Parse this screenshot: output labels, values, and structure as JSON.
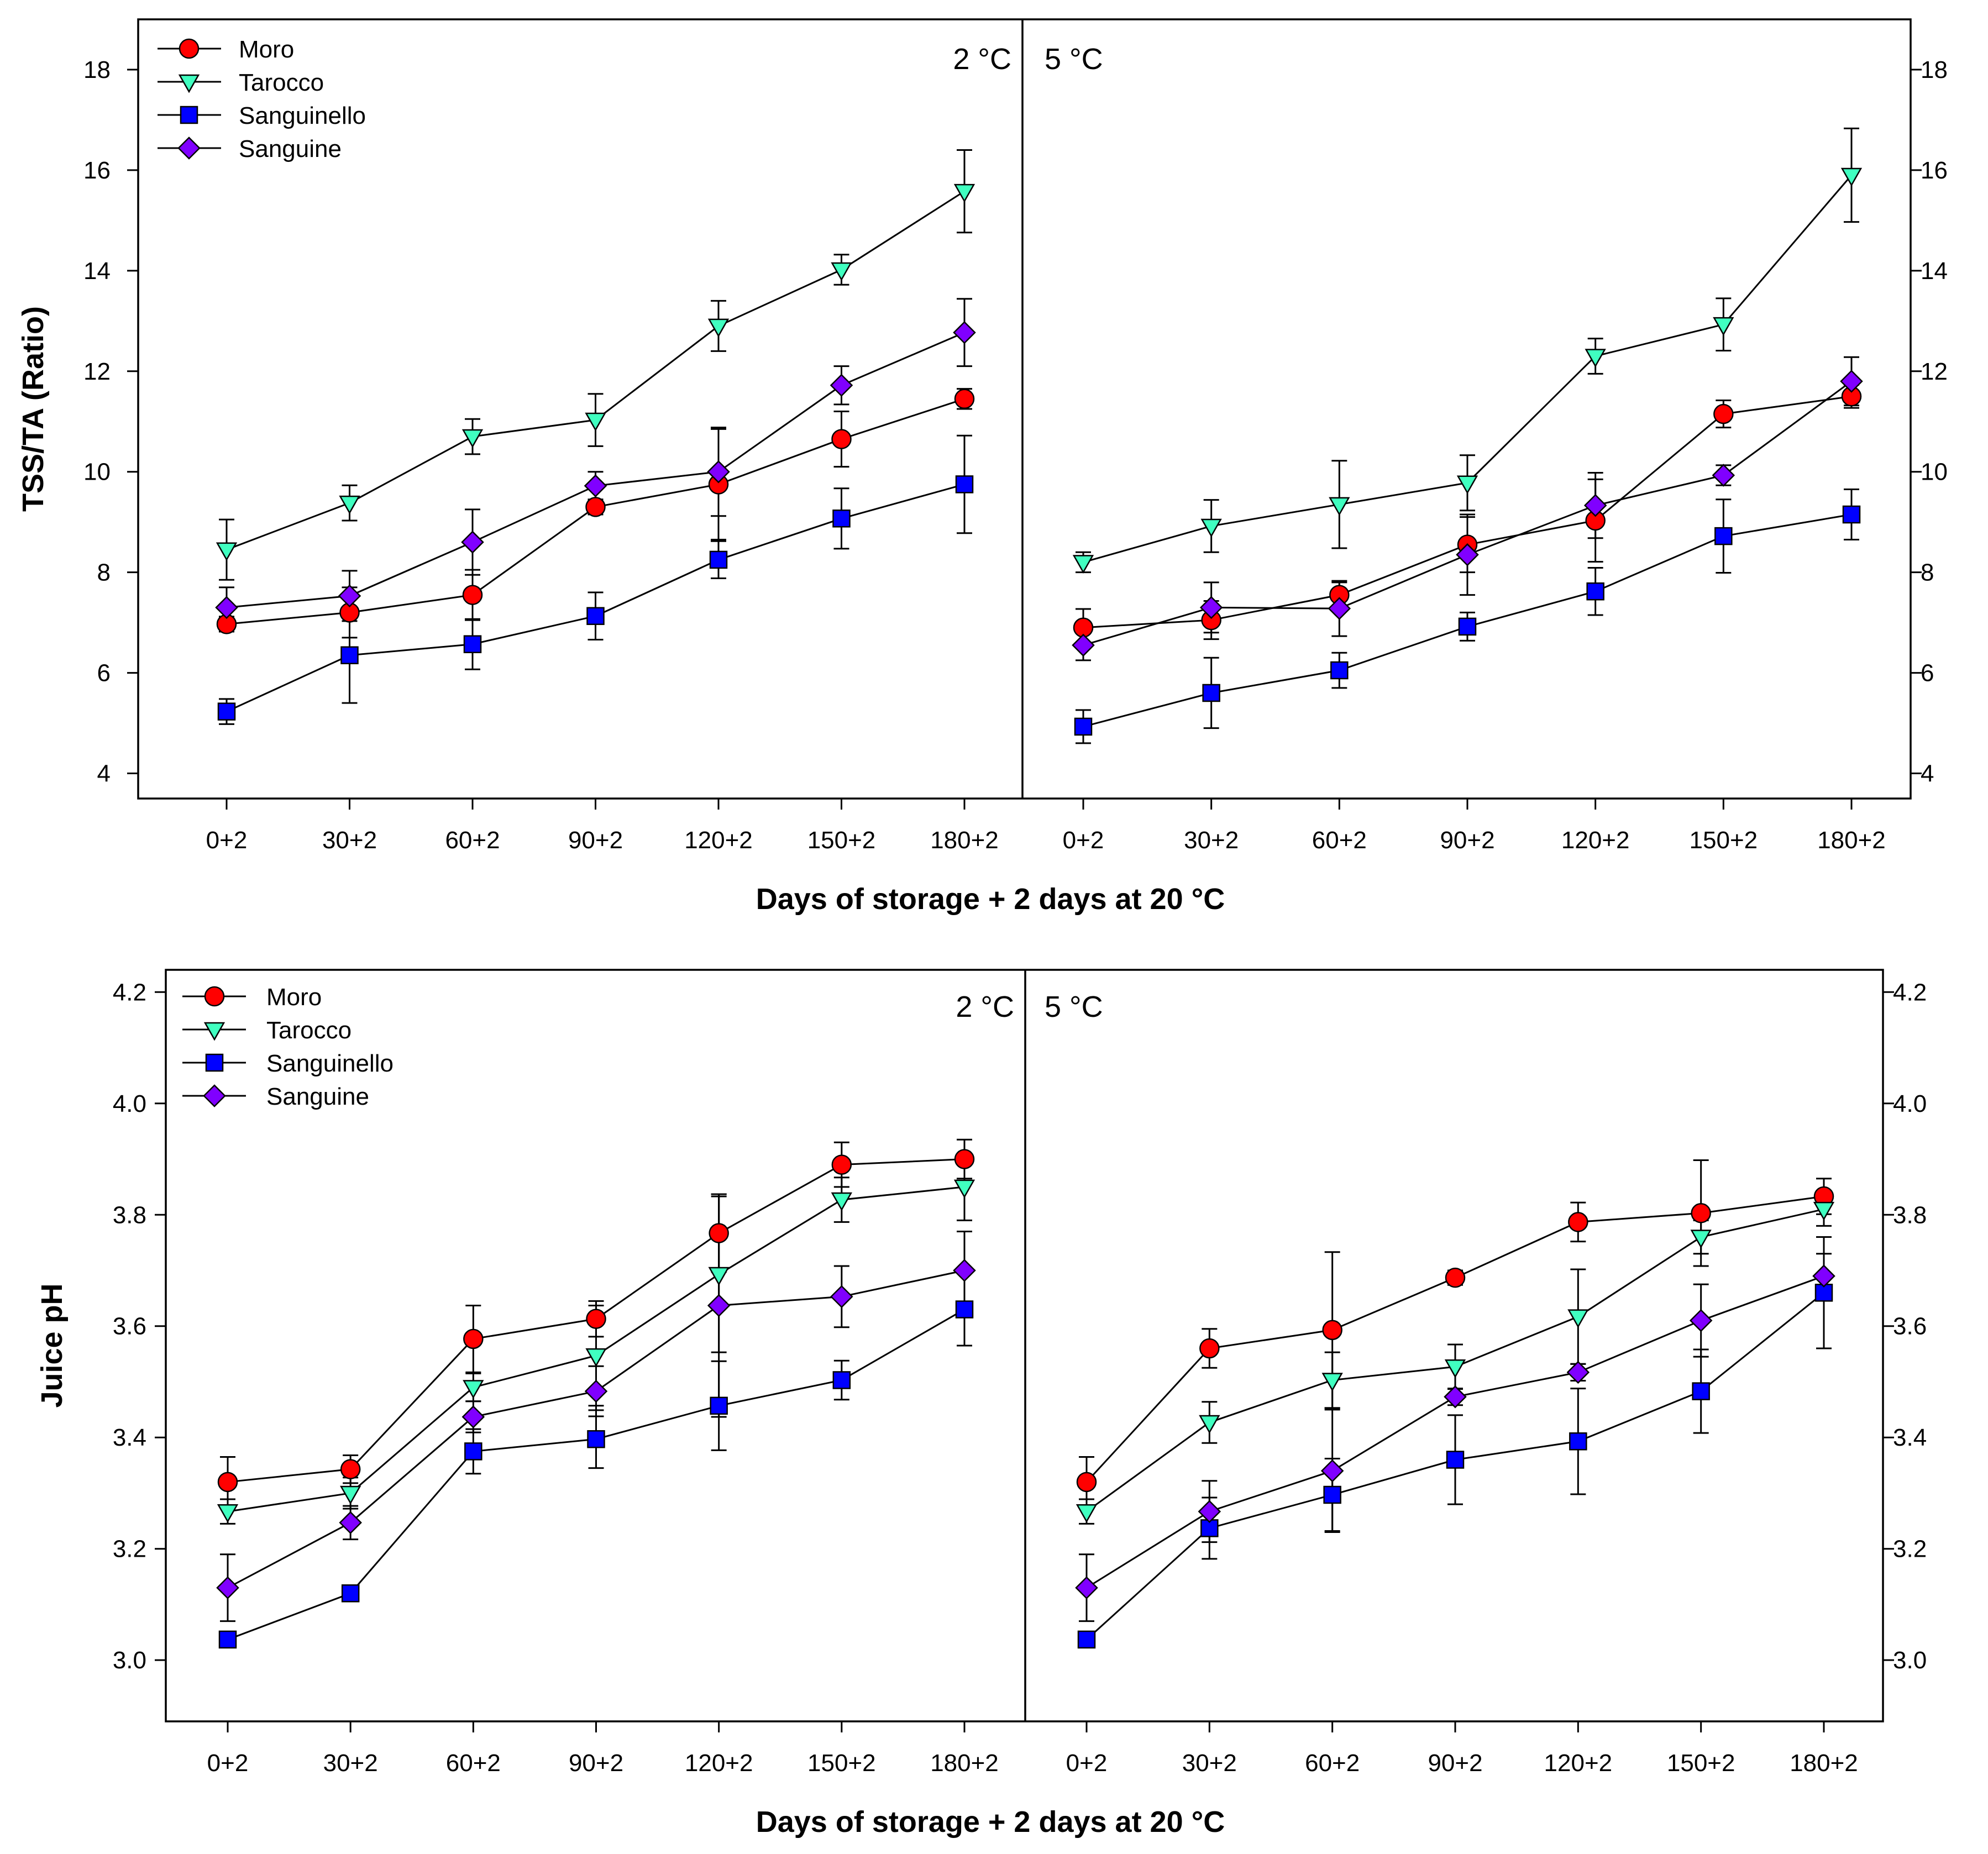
{
  "series_meta": [
    {
      "name": "Moro",
      "marker": "circle",
      "color": "#ff0000"
    },
    {
      "name": "Tarocco",
      "marker": "triangle-down",
      "color": "#40ffc0"
    },
    {
      "name": "Sanguinello",
      "marker": "square",
      "color": "#0000ff"
    },
    {
      "name": "Sanguine",
      "marker": "diamond",
      "color": "#8000ff"
    }
  ],
  "chart_data": [
    {
      "type": "line",
      "ylabel": "TSS/TA (Ratio)",
      "xlabel": "Days of storage + 2 days at 20 °C",
      "ylim": [
        3.5,
        19
      ],
      "yticks": [
        4,
        6,
        8,
        10,
        12,
        14,
        16,
        18
      ],
      "categories": [
        "0+2",
        "30+2",
        "60+2",
        "90+2",
        "120+2",
        "150+2",
        "180+2"
      ],
      "legend": "top-left",
      "panels": [
        {
          "label": "2 °C",
          "series": [
            {
              "name": "Moro",
              "values": [
                6.97,
                7.2,
                7.55,
                9.3,
                9.75,
                10.65,
                11.45
              ],
              "errors": [
                0.15,
                0.5,
                0.5,
                0.15,
                1.1,
                0.55,
                0.2
              ]
            },
            {
              "name": "Tarocco",
              "values": [
                8.45,
                9.38,
                10.7,
                11.03,
                12.9,
                14.02,
                15.58
              ],
              "errors": [
                0.6,
                0.35,
                0.35,
                0.52,
                0.5,
                0.3,
                0.82
              ]
            },
            {
              "name": "Sanguinello",
              "values": [
                5.23,
                6.35,
                6.57,
                7.13,
                8.25,
                9.07,
                9.75
              ],
              "errors": [
                0.25,
                0.95,
                0.5,
                0.47,
                0.37,
                0.6,
                0.97
              ]
            },
            {
              "name": "Sanguine",
              "values": [
                7.3,
                7.53,
                8.6,
                9.72,
                10.0,
                11.72,
                12.77
              ],
              "errors": [
                0.4,
                0.5,
                0.65,
                0.28,
                0.88,
                0.38,
                0.67
              ]
            }
          ]
        },
        {
          "label": "5 °C",
          "series": [
            {
              "name": "Moro",
              "values": [
                6.9,
                7.05,
                7.55,
                8.55,
                9.03,
                11.15,
                11.5
              ],
              "errors": [
                0.37,
                0.38,
                0.25,
                0.55,
                0.82,
                0.27,
                0.23
              ]
            },
            {
              "name": "Tarocco",
              "values": [
                8.2,
                8.92,
                9.35,
                9.78,
                12.3,
                12.93,
                15.9
              ],
              "errors": [
                0.2,
                0.52,
                0.87,
                0.55,
                0.35,
                0.52,
                0.93
              ]
            },
            {
              "name": "Sanguinello",
              "values": [
                4.93,
                5.6,
                6.05,
                6.92,
                7.62,
                8.72,
                9.15
              ],
              "errors": [
                0.33,
                0.7,
                0.35,
                0.28,
                0.47,
                0.73,
                0.5
              ]
            },
            {
              "name": "Sanguine",
              "values": [
                6.55,
                7.3,
                7.28,
                8.35,
                9.33,
                9.93,
                11.8
              ],
              "errors": [
                0.3,
                0.5,
                0.55,
                0.8,
                0.65,
                0.2,
                0.48
              ]
            }
          ]
        }
      ]
    },
    {
      "type": "line",
      "ylabel": "Juice pH",
      "xlabel": "Days of storage + 2 days at 20 °C",
      "ylim": [
        2.89,
        4.24
      ],
      "yticks": [
        "3.0",
        "3.2",
        "3.4",
        "3.6",
        "3.8",
        "4.0",
        "4.2"
      ],
      "categories": [
        "0+2",
        "30+2",
        "60+2",
        "90+2",
        "120+2",
        "150+2",
        "180+2"
      ],
      "legend": "top-left",
      "panels": [
        {
          "label": "2 °C",
          "series": [
            {
              "name": "Moro",
              "values": [
                3.32,
                3.343,
                3.577,
                3.613,
                3.767,
                3.89,
                3.9
              ],
              "errors": [
                0.045,
                0.025,
                0.06,
                0.032,
                0.07,
                0.04,
                0.035
              ]
            },
            {
              "name": "Tarocco",
              "values": [
                3.267,
                3.3,
                3.49,
                3.547,
                3.693,
                3.827,
                3.85
              ],
              "errors": [
                0.022,
                0.028,
                0.025,
                0.09,
                0.14,
                0.04,
                0.06
              ]
            },
            {
              "name": "Sanguinello",
              "values": [
                3.037,
                3.12,
                3.375,
                3.397,
                3.457,
                3.503,
                3.63
              ],
              "errors": [
                0.008,
                0.008,
                0.04,
                0.052,
                0.08,
                0.035,
                0.065
              ]
            },
            {
              "name": "Sanguine",
              "values": [
                3.13,
                3.247,
                3.437,
                3.483,
                3.637,
                3.653,
                3.7
              ],
              "errors": [
                0.06,
                0.03,
                0.028,
                0.045,
                0.2,
                0.055,
                0.07
              ]
            }
          ]
        },
        {
          "label": "5 °C",
          "series": [
            {
              "name": "Moro",
              "values": [
                3.32,
                3.56,
                3.593,
                3.687,
                3.787,
                3.803,
                3.833
              ],
              "errors": [
                0.045,
                0.035,
                0.14,
                0.013,
                0.035,
                0.095,
                0.032
              ]
            },
            {
              "name": "Tarocco",
              "values": [
                3.267,
                3.427,
                3.503,
                3.527,
                3.617,
                3.76,
                3.81
              ],
              "errors": [
                0.022,
                0.037,
                0.05,
                0.04,
                0.085,
                0.03,
                0.03
              ]
            },
            {
              "name": "Sanguinello",
              "values": [
                3.037,
                3.237,
                3.297,
                3.36,
                3.393,
                3.483,
                3.66
              ],
              "errors": [
                0.008,
                0.055,
                0.065,
                0.08,
                0.095,
                0.075,
                0.1
              ]
            },
            {
              "name": "Sanguine",
              "values": [
                3.13,
                3.267,
                3.34,
                3.473,
                3.517,
                3.61,
                3.69
              ],
              "errors": [
                0.06,
                0.055,
                0.11,
                0.015,
                0.015,
                0.065,
                0.04
              ]
            }
          ]
        }
      ]
    }
  ]
}
